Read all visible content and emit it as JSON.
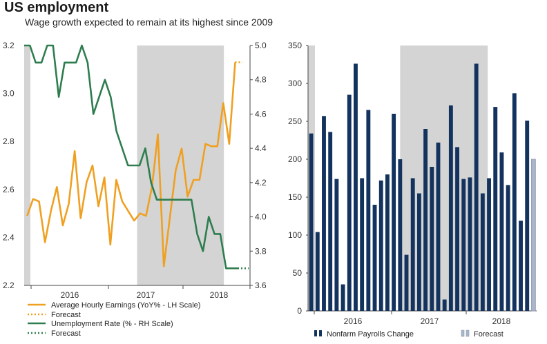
{
  "title": "US employment",
  "subtitle": "Wage growth expected to remain at its highest since 2009",
  "colors": {
    "wages": "#f0a020",
    "unemployment": "#2e7d4f",
    "payrolls": "#13335e",
    "forecast_bar": "#aab6c8",
    "shade": "#d4d4d4"
  },
  "chart_data": [
    {
      "type": "line",
      "x_tick_labels": [
        "2016",
        "2017",
        "2018"
      ],
      "left_axis": {
        "ylim": [
          2.2,
          3.2
        ],
        "ticks": [
          "2.2",
          "2.4",
          "2.6",
          "2.8",
          "3.0",
          "3.2"
        ]
      },
      "right_axis": {
        "ylim": [
          3.6,
          5.0
        ],
        "ticks": [
          "3.6",
          "3.8",
          "4.0",
          "4.2",
          "4.4",
          "4.6",
          "4.8",
          "5.0"
        ]
      },
      "series": [
        {
          "name": "Average Hourly Earnings (YoY% - LH Scale)",
          "axis": "left",
          "values": [
            2.49,
            2.56,
            2.55,
            2.38,
            2.51,
            2.61,
            2.45,
            2.54,
            2.76,
            2.48,
            2.63,
            2.7,
            2.53,
            2.65,
            2.37,
            2.64,
            2.55,
            2.51,
            2.47,
            2.5,
            2.49,
            2.61,
            2.83,
            2.28,
            2.48,
            2.68,
            2.77,
            2.57,
            2.64,
            2.64,
            2.79,
            2.78,
            2.78,
            2.96,
            2.79,
            3.13
          ]
        },
        {
          "name": "Forecast",
          "axis": "left",
          "forecast": true,
          "values": [
            3.13,
            3.13
          ]
        },
        {
          "name": "Unemployment Rate (% - RH Scale)",
          "axis": "right",
          "values": [
            5.0,
            5.0,
            4.9,
            4.9,
            5.0,
            5.0,
            4.7,
            4.9,
            4.9,
            4.9,
            5.0,
            4.9,
            4.6,
            4.7,
            4.8,
            4.7,
            4.5,
            4.4,
            4.3,
            4.3,
            4.3,
            4.4,
            4.2,
            4.1,
            4.1,
            4.1,
            4.1,
            4.1,
            4.1,
            4.1,
            3.9,
            3.8,
            4.0,
            3.9,
            3.9,
            3.7,
            3.7,
            3.7
          ]
        },
        {
          "name": "Forecast",
          "axis": "right",
          "forecast": true,
          "values": [
            3.7,
            3.7
          ]
        }
      ],
      "shaded_periods": [
        [
          0,
          0.45
        ],
        [
          19,
          33.6
        ]
      ]
    },
    {
      "type": "bar",
      "x_tick_labels": [
        "2016",
        "2017",
        "2018"
      ],
      "ylim": [
        0,
        350
      ],
      "y_ticks": [
        "0",
        "50",
        "100",
        "150",
        "200",
        "250",
        "300",
        "350"
      ],
      "series": [
        {
          "name": "Nonfarm Payrolls Change",
          "values": [
            234,
            104,
            257,
            236,
            174,
            35,
            285,
            326,
            175,
            265,
            140,
            172,
            180,
            260,
            200,
            74,
            175,
            155,
            240,
            190,
            222,
            15,
            271,
            216,
            174,
            176,
            326,
            155,
            175,
            269,
            209,
            166,
            287,
            119,
            251
          ]
        },
        {
          "name": "Forecast",
          "forecast": true,
          "values": [
            200
          ]
        }
      ],
      "shaded_periods": [
        [
          0,
          0.4
        ],
        [
          14.5,
          28.3
        ]
      ]
    }
  ]
}
